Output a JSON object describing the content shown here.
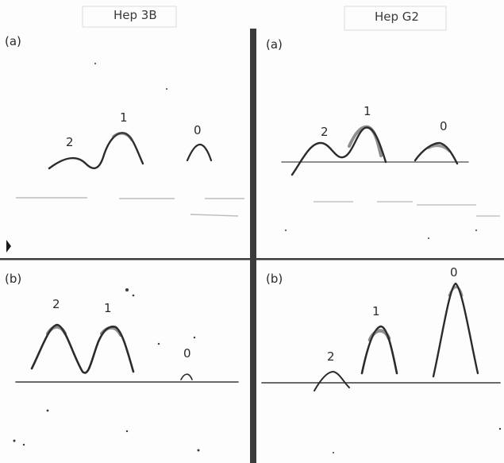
{
  "columns": [
    {
      "title": "Hep 3B"
    },
    {
      "title": "Hep G2"
    }
  ],
  "panels": [
    {
      "id": "hep3b-a",
      "label": "(a)",
      "peaks": [
        "2",
        "1",
        "0"
      ]
    },
    {
      "id": "hepg2-a",
      "label": "(a)",
      "peaks": [
        "2",
        "1",
        "0"
      ]
    },
    {
      "id": "hep3b-b",
      "label": "(b)",
      "peaks": [
        "2",
        "1",
        "0"
      ]
    },
    {
      "id": "hepg2-b",
      "label": "(b)",
      "peaks": [
        "2",
        "1",
        "0"
      ]
    }
  ],
  "colors": {
    "ink": "#1a1a1a",
    "trace": "#2b2b2b",
    "divider": "#3c3c3c",
    "faint": "#c8c8c8"
  }
}
